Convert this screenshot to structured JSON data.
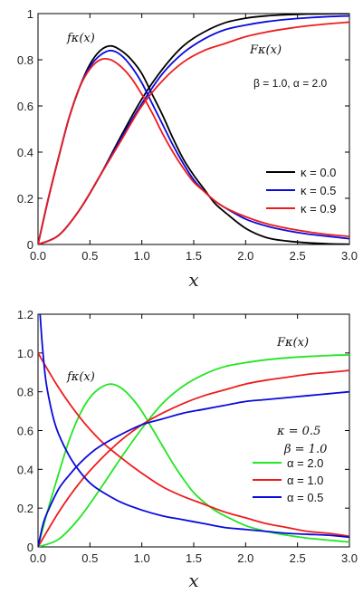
{
  "colors": {
    "black": "#000000",
    "blue": "#0a0adc",
    "red": "#ee1c1c",
    "green": "#22e622"
  },
  "chart_data": [
    {
      "type": "line",
      "xlabel": "x",
      "xlim": [
        0,
        3
      ],
      "ylim": [
        0,
        1
      ],
      "xticks": [
        "0.0",
        "0.5",
        "1.0",
        "1.5",
        "2.0",
        "2.5",
        "3.0"
      ],
      "yticks": [
        "0",
        "0.2",
        "0.4",
        "0.6",
        "0.8",
        "1"
      ],
      "annotations": {
        "pdf": "fκ(x)",
        "cdf": "Fκ(x)",
        "params": "β = 1.0, α = 2.0"
      },
      "legend_position": "center-right",
      "series": [
        {
          "name": "κ = 0.0",
          "color": "#000000",
          "pdf": {
            "x": [
              0,
              0.1,
              0.2,
              0.3,
              0.4,
              0.5,
              0.6,
              0.7,
              0.8,
              0.9,
              1.0,
              1.1,
              1.2,
              1.3,
              1.4,
              1.5,
              1.6,
              1.7,
              1.8,
              2.0,
              2.2,
              2.4,
              2.6,
              2.8,
              3.0
            ],
            "y": [
              0,
              0.2,
              0.38,
              0.55,
              0.68,
              0.78,
              0.84,
              0.86,
              0.84,
              0.8,
              0.74,
              0.65,
              0.56,
              0.46,
              0.37,
              0.3,
              0.24,
              0.18,
              0.14,
              0.07,
              0.03,
              0.015,
              0.007,
              0.003,
              0.001
            ]
          },
          "cdf": {
            "x": [
              0,
              0.2,
              0.4,
              0.6,
              0.8,
              1.0,
              1.2,
              1.4,
              1.6,
              1.8,
              2.0,
              2.2,
              2.4,
              2.6,
              2.8,
              3.0
            ],
            "y": [
              0,
              0.04,
              0.15,
              0.3,
              0.47,
              0.63,
              0.76,
              0.86,
              0.92,
              0.96,
              0.98,
              0.99,
              0.995,
              0.998,
              0.999,
              1.0
            ]
          }
        },
        {
          "name": "κ = 0.5",
          "color": "#0a0adc",
          "pdf": {
            "x": [
              0,
              0.1,
              0.2,
              0.3,
              0.4,
              0.5,
              0.6,
              0.7,
              0.8,
              0.9,
              1.0,
              1.1,
              1.2,
              1.3,
              1.4,
              1.5,
              1.6,
              1.7,
              1.8,
              2.0,
              2.2,
              2.4,
              2.6,
              2.8,
              3.0
            ],
            "y": [
              0,
              0.2,
              0.38,
              0.55,
              0.68,
              0.77,
              0.82,
              0.84,
              0.82,
              0.77,
              0.7,
              0.61,
              0.52,
              0.43,
              0.35,
              0.28,
              0.23,
              0.19,
              0.16,
              0.11,
              0.08,
              0.06,
              0.045,
              0.035,
              0.025
            ]
          },
          "cdf": {
            "x": [
              0,
              0.2,
              0.4,
              0.6,
              0.8,
              1.0,
              1.2,
              1.4,
              1.6,
              1.8,
              2.0,
              2.2,
              2.4,
              2.6,
              2.8,
              3.0
            ],
            "y": [
              0,
              0.04,
              0.15,
              0.3,
              0.46,
              0.61,
              0.74,
              0.83,
              0.89,
              0.93,
              0.95,
              0.965,
              0.975,
              0.982,
              0.987,
              0.99
            ]
          }
        },
        {
          "name": "κ = 0.9",
          "color": "#ee1c1c",
          "pdf": {
            "x": [
              0,
              0.1,
              0.2,
              0.3,
              0.4,
              0.5,
              0.6,
              0.7,
              0.8,
              0.9,
              1.0,
              1.1,
              1.2,
              1.3,
              1.4,
              1.5,
              1.6,
              1.7,
              1.8,
              2.0,
              2.2,
              2.4,
              2.6,
              2.8,
              3.0
            ],
            "y": [
              0,
              0.2,
              0.38,
              0.55,
              0.68,
              0.76,
              0.8,
              0.8,
              0.77,
              0.72,
              0.65,
              0.57,
              0.48,
              0.4,
              0.33,
              0.27,
              0.23,
              0.19,
              0.16,
              0.12,
              0.09,
              0.07,
              0.055,
              0.043,
              0.035
            ]
          },
          "cdf": {
            "x": [
              0,
              0.2,
              0.4,
              0.6,
              0.8,
              1.0,
              1.2,
              1.4,
              1.6,
              1.8,
              2.0,
              2.2,
              2.4,
              2.6,
              2.8,
              3.0
            ],
            "y": [
              0,
              0.04,
              0.15,
              0.3,
              0.45,
              0.6,
              0.71,
              0.79,
              0.84,
              0.87,
              0.9,
              0.92,
              0.935,
              0.947,
              0.956,
              0.963
            ]
          }
        }
      ]
    },
    {
      "type": "line",
      "xlabel": "x",
      "xlim": [
        0,
        3
      ],
      "ylim": [
        0,
        1.2
      ],
      "xticks": [
        "0.0",
        "0.5",
        "1.0",
        "1.5",
        "2.0",
        "2.5",
        "3.0"
      ],
      "yticks": [
        "0",
        "0.2",
        "0.4",
        "0.6",
        "0.8",
        "1.0",
        "1.2"
      ],
      "annotations": {
        "pdf": "fκ(x)",
        "cdf": "Fκ(x)",
        "kappa": "κ = 0.5",
        "beta": "β = 1.0"
      },
      "legend_position": "center-right",
      "series": [
        {
          "name": "α = 2.0",
          "color": "#22e622",
          "pdf": {
            "x": [
              0,
              0.1,
              0.2,
              0.3,
              0.4,
              0.5,
              0.6,
              0.7,
              0.8,
              0.9,
              1.0,
              1.1,
              1.2,
              1.3,
              1.4,
              1.5,
              1.6,
              1.7,
              1.8,
              2.0,
              2.2,
              2.4,
              2.6,
              2.8,
              3.0
            ],
            "y": [
              0,
              0.2,
              0.38,
              0.55,
              0.68,
              0.77,
              0.82,
              0.84,
              0.82,
              0.77,
              0.7,
              0.61,
              0.52,
              0.43,
              0.35,
              0.28,
              0.23,
              0.19,
              0.16,
              0.11,
              0.08,
              0.06,
              0.045,
              0.035,
              0.025
            ]
          },
          "cdf": {
            "x": [
              0,
              0.2,
              0.4,
              0.6,
              0.8,
              1.0,
              1.2,
              1.4,
              1.6,
              1.8,
              2.0,
              2.2,
              2.4,
              2.6,
              2.8,
              3.0
            ],
            "y": [
              0,
              0.04,
              0.15,
              0.3,
              0.46,
              0.61,
              0.74,
              0.83,
              0.89,
              0.93,
              0.95,
              0.965,
              0.975,
              0.982,
              0.987,
              0.99
            ]
          }
        },
        {
          "name": "α = 1.0",
          "color": "#ee1c1c",
          "pdf": {
            "x": [
              0,
              0.2,
              0.4,
              0.6,
              0.8,
              1.0,
              1.2,
              1.4,
              1.6,
              1.8,
              2.0,
              2.2,
              2.4,
              2.6,
              2.8,
              3.0
            ],
            "y": [
              1.0,
              0.82,
              0.67,
              0.55,
              0.46,
              0.38,
              0.31,
              0.26,
              0.22,
              0.18,
              0.15,
              0.12,
              0.1,
              0.08,
              0.07,
              0.055
            ]
          },
          "cdf": {
            "x": [
              0,
              0.2,
              0.4,
              0.6,
              0.8,
              1.0,
              1.2,
              1.4,
              1.6,
              1.8,
              2.0,
              2.2,
              2.4,
              2.6,
              2.8,
              3.0
            ],
            "y": [
              0,
              0.18,
              0.33,
              0.45,
              0.55,
              0.63,
              0.69,
              0.74,
              0.78,
              0.81,
              0.84,
              0.86,
              0.875,
              0.89,
              0.9,
              0.91
            ]
          }
        },
        {
          "name": "α = 0.5",
          "color": "#0a0adc",
          "pdf": {
            "x": [
              0.02,
              0.04,
              0.07,
              0.1,
              0.15,
              0.2,
              0.3,
              0.4,
              0.5,
              0.6,
              0.8,
              1.0,
              1.2,
              1.4,
              1.6,
              1.8,
              2.0,
              2.2,
              2.4,
              2.6,
              2.8,
              3.0
            ],
            "y": [
              1.2,
              1.05,
              0.88,
              0.78,
              0.66,
              0.58,
              0.47,
              0.39,
              0.33,
              0.29,
              0.23,
              0.19,
              0.16,
              0.14,
              0.12,
              0.1,
              0.09,
              0.08,
              0.07,
              0.065,
              0.06,
              0.05
            ]
          },
          "cdf": {
            "x": [
              0,
              0.05,
              0.1,
              0.2,
              0.3,
              0.4,
              0.5,
              0.6,
              0.8,
              1.0,
              1.2,
              1.4,
              1.6,
              1.8,
              2.0,
              2.2,
              2.4,
              2.6,
              2.8,
              3.0
            ],
            "y": [
              0,
              0.12,
              0.19,
              0.3,
              0.37,
              0.43,
              0.48,
              0.52,
              0.58,
              0.63,
              0.66,
              0.69,
              0.71,
              0.73,
              0.75,
              0.76,
              0.77,
              0.78,
              0.79,
              0.8
            ]
          }
        }
      ]
    }
  ]
}
